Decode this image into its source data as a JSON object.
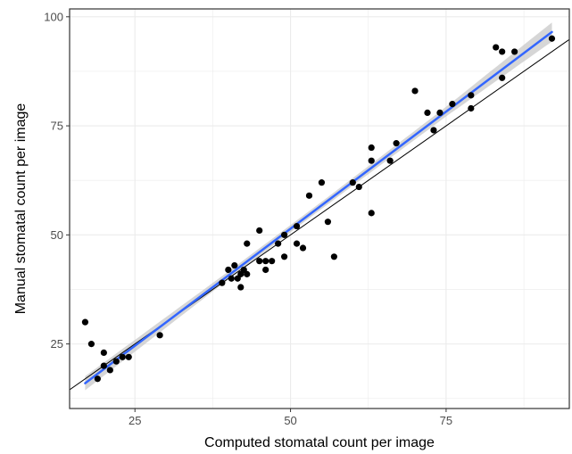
{
  "chart_data": {
    "type": "scatter",
    "title": "",
    "xlabel": "Computed stomatal count per image",
    "ylabel": "Manual stomatal count per image",
    "xlim": [
      14.5,
      94.8
    ],
    "ylim": [
      10.2,
      101.8
    ],
    "x_ticks": [
      25,
      50,
      75
    ],
    "y_ticks": [
      25,
      50,
      75,
      100
    ],
    "x_tick_labels": [
      "25",
      "50",
      "75"
    ],
    "y_tick_labels": [
      "25",
      "50",
      "75",
      "100"
    ],
    "grid": true,
    "legend": "none",
    "colors": {
      "points": "#000000",
      "fit_line": "#3366ff",
      "confidence_band": "#c8c8c8",
      "identity_line": "#000000",
      "grid": "#ebebeb",
      "panel_border": "#333333"
    },
    "points": [
      {
        "x": 17,
        "y": 30
      },
      {
        "x": 18,
        "y": 25
      },
      {
        "x": 19,
        "y": 17
      },
      {
        "x": 20,
        "y": 20
      },
      {
        "x": 20,
        "y": 23
      },
      {
        "x": 21,
        "y": 19
      },
      {
        "x": 22,
        "y": 21
      },
      {
        "x": 23,
        "y": 22
      },
      {
        "x": 24,
        "y": 22
      },
      {
        "x": 29,
        "y": 27
      },
      {
        "x": 39,
        "y": 39
      },
      {
        "x": 40,
        "y": 42
      },
      {
        "x": 40.5,
        "y": 40
      },
      {
        "x": 41,
        "y": 43
      },
      {
        "x": 41.5,
        "y": 40
      },
      {
        "x": 42,
        "y": 38
      },
      {
        "x": 42,
        "y": 41
      },
      {
        "x": 42.5,
        "y": 42
      },
      {
        "x": 43,
        "y": 48
      },
      {
        "x": 43,
        "y": 41
      },
      {
        "x": 45,
        "y": 44
      },
      {
        "x": 45,
        "y": 51
      },
      {
        "x": 46,
        "y": 42
      },
      {
        "x": 46,
        "y": 44
      },
      {
        "x": 47,
        "y": 44
      },
      {
        "x": 48,
        "y": 48
      },
      {
        "x": 49,
        "y": 45
      },
      {
        "x": 49,
        "y": 50
      },
      {
        "x": 51,
        "y": 52
      },
      {
        "x": 51,
        "y": 48
      },
      {
        "x": 52,
        "y": 47
      },
      {
        "x": 53,
        "y": 59
      },
      {
        "x": 55,
        "y": 62
      },
      {
        "x": 56,
        "y": 53
      },
      {
        "x": 57,
        "y": 45
      },
      {
        "x": 60,
        "y": 62
      },
      {
        "x": 61,
        "y": 61
      },
      {
        "x": 63,
        "y": 55
      },
      {
        "x": 63,
        "y": 67
      },
      {
        "x": 63,
        "y": 70
      },
      {
        "x": 66,
        "y": 67
      },
      {
        "x": 67,
        "y": 71
      },
      {
        "x": 70,
        "y": 83
      },
      {
        "x": 72,
        "y": 78
      },
      {
        "x": 73,
        "y": 74
      },
      {
        "x": 74,
        "y": 78
      },
      {
        "x": 76,
        "y": 80
      },
      {
        "x": 79,
        "y": 82
      },
      {
        "x": 79,
        "y": 79
      },
      {
        "x": 83,
        "y": 93
      },
      {
        "x": 84,
        "y": 92
      },
      {
        "x": 84,
        "y": 86
      },
      {
        "x": 86,
        "y": 92
      },
      {
        "x": 92,
        "y": 95
      }
    ],
    "fit_line": {
      "x": [
        17,
        92
      ],
      "y": [
        16,
        96.5
      ]
    },
    "confidence_band_halfwidth": {
      "x": [
        17,
        40,
        55,
        75,
        92
      ],
      "y": [
        1.6,
        0.9,
        0.8,
        1.1,
        2.2
      ]
    },
    "identity_line": {
      "x": [
        14.5,
        94.8
      ],
      "y": [
        14.5,
        94.8
      ]
    }
  }
}
